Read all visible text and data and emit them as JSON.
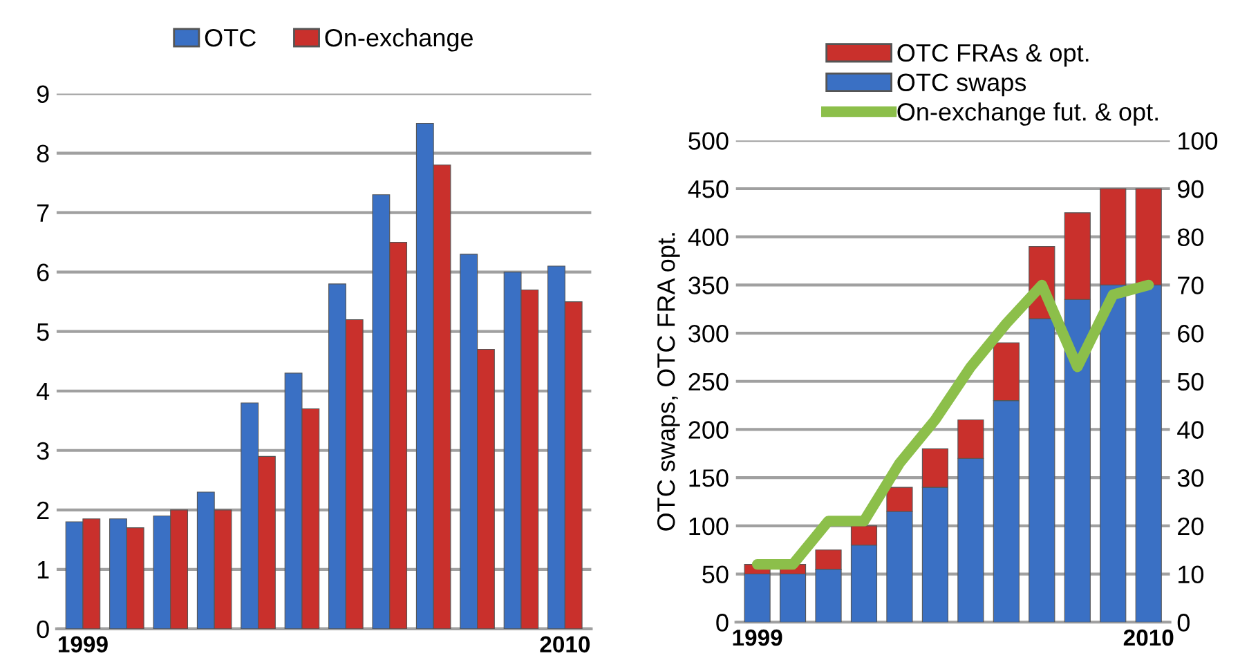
{
  "chart_data": [
    {
      "type": "bar",
      "categories": [
        "1999",
        null,
        null,
        null,
        null,
        null,
        null,
        null,
        null,
        null,
        null,
        "2010"
      ],
      "series": [
        {
          "name": "OTC",
          "color": "#3a70c4",
          "values": [
            1.8,
            1.85,
            1.9,
            2.3,
            3.8,
            4.3,
            5.8,
            7.3,
            8.5,
            6.3,
            6.0,
            6.1
          ]
        },
        {
          "name": "On-exchange",
          "color": "#c9302c",
          "values": [
            1.85,
            1.7,
            2.0,
            2.0,
            2.9,
            3.7,
            5.2,
            6.5,
            7.8,
            4.7,
            5.7,
            5.5
          ]
        }
      ],
      "ylim": [
        0,
        9
      ],
      "yticks": [
        0,
        1,
        2,
        3,
        4,
        5,
        6,
        7,
        8,
        9
      ],
      "grid": "y",
      "legend": "top"
    },
    {
      "type": "bar",
      "stacked": true,
      "categories": [
        "1999",
        null,
        null,
        null,
        null,
        null,
        null,
        null,
        null,
        null,
        null,
        "2010"
      ],
      "series": [
        {
          "name": "OTC swaps",
          "color": "#3a70c4",
          "values": [
            50,
            50,
            55,
            80,
            115,
            140,
            170,
            230,
            315,
            335,
            350,
            350
          ]
        },
        {
          "name": "OTC FRAs & opt.",
          "color": "#c9302c",
          "values": [
            10,
            10,
            20,
            20,
            25,
            40,
            40,
            60,
            75,
            90,
            100,
            100
          ]
        },
        {
          "name": "On-exchange fut. & opt.",
          "type": "line",
          "axis": "y2",
          "color": "#8cbf4a",
          "values": [
            12,
            12,
            21,
            21,
            33,
            42,
            53,
            62,
            70,
            53,
            68,
            70
          ]
        }
      ],
      "ylabel": "OTC swaps, OTC FRA opt.",
      "ylim": [
        0,
        500
      ],
      "yticks": [
        0,
        50,
        100,
        150,
        200,
        250,
        300,
        350,
        400,
        450,
        500
      ],
      "y2lim": [
        0,
        100
      ],
      "y2ticks": [
        0,
        10,
        20,
        30,
        40,
        50,
        60,
        70,
        80,
        90,
        100
      ],
      "grid": "y",
      "legend": "top right"
    }
  ]
}
